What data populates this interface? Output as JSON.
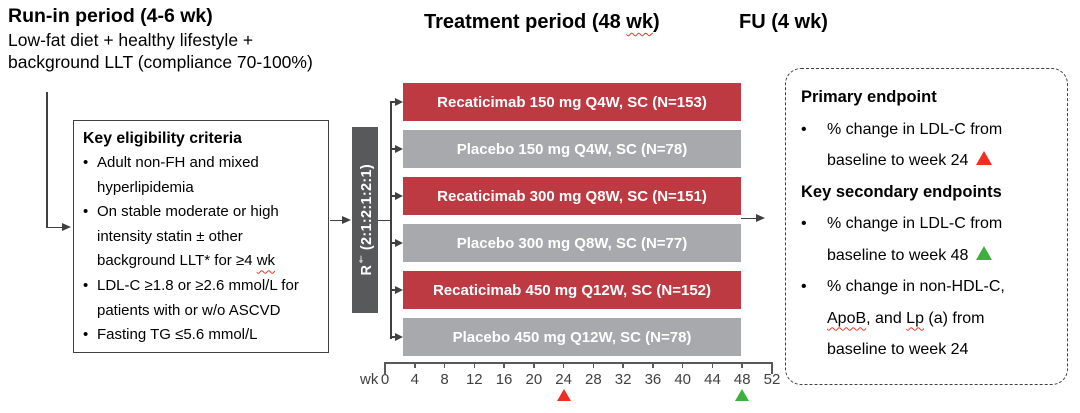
{
  "run_in": {
    "title": "Run-in period (4-6 wk)",
    "line1": "Low-fat diet + healthy lifestyle +",
    "line2": "background LLT (compliance 70-100%)"
  },
  "headers": {
    "treatment_segments": [
      {
        "t": "Treatment period (48 "
      },
      {
        "t": "wk",
        "wavy": true
      },
      {
        "t": ")"
      }
    ],
    "fu": "FU (4 wk)"
  },
  "eligibility": {
    "title": "Key eligibility criteria",
    "bullet_char": "•",
    "bullets": [
      [
        {
          "t": "Adult non-FH and mixed hyperlipidemia"
        }
      ],
      [
        {
          "t": "On stable moderate or high intensity statin ± other background LLT* for ≥4 "
        },
        {
          "t": "wk",
          "wavy": true
        }
      ],
      [
        {
          "t": "LDL-C ≥1.8 or ≥2.6 mmol/L for patients with or w/o ASCVD"
        }
      ],
      [
        {
          "t": "Fasting TG ≤5.6 mmol/L"
        }
      ]
    ]
  },
  "randomization": {
    "prefix": "R",
    "sup": "†",
    "ratio": " (2:1:2:1:2:1)",
    "box_color": "#58595B"
  },
  "arms": [
    {
      "label": "Recaticimab 150 mg Q4W, SC (N=153)",
      "type": "recaticimab"
    },
    {
      "label": "Placebo 150 mg Q4W, SC (N=78)",
      "type": "placebo"
    },
    {
      "label": "Recaticimab 300 mg Q8W, SC (N=151)",
      "type": "recaticimab"
    },
    {
      "label": "Placebo 300 mg Q8W, SC (N=77)",
      "type": "placebo"
    },
    {
      "label": "Recaticimab 450 mg Q12W, SC (N=152)",
      "type": "recaticimab"
    },
    {
      "label": "Placebo 450 mg Q12W, SC (N=78)",
      "type": "placebo"
    }
  ],
  "arm_colors": {
    "recaticimab": "#BE3A43",
    "placebo": "#A7A9AC"
  },
  "axis": {
    "unit": "wk",
    "max_week": 52,
    "weeks": [
      0,
      4,
      8,
      12,
      16,
      20,
      24,
      28,
      32,
      36,
      40,
      44,
      48,
      52
    ],
    "markers": [
      {
        "week": 24,
        "color": "#F02E21"
      },
      {
        "week": 48,
        "color": "#3CB23C"
      }
    ]
  },
  "endpoints": {
    "bullet_char": "•",
    "blocks": [
      {
        "heading": "Primary endpoint",
        "items": [
          [
            {
              "t": "% change in LDL-C from baseline to week 24 "
            },
            {
              "tri": "#F02E21"
            }
          ]
        ]
      },
      {
        "heading": "Key secondary endpoints",
        "items": [
          [
            {
              "t": "% change in LDL-C from baseline to week 48 "
            },
            {
              "tri": "#3CB23C"
            }
          ],
          [
            {
              "t": "% change in non-HDL-C, "
            },
            {
              "t": "ApoB",
              "wavy": true
            },
            {
              "t": ", and "
            },
            {
              "t": "Lp",
              "wavy": true
            },
            {
              "t": " (a) from baseline to week 24"
            }
          ]
        ]
      }
    ]
  }
}
